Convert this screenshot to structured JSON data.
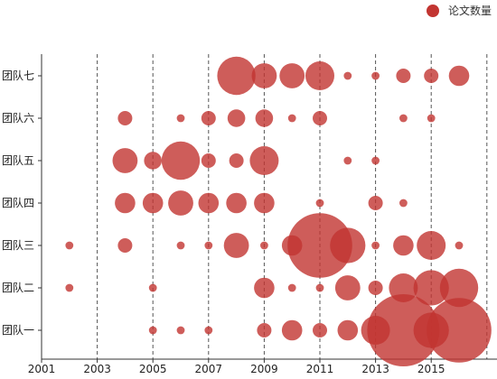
{
  "legend": {
    "label": "论文数量",
    "color": "#c23531"
  },
  "chart_data": {
    "type": "scatter",
    "subtype": "bubble",
    "series": [
      {
        "name": "论文数量",
        "color": "#c23531"
      }
    ],
    "x_categories": [
      "2001",
      "2002",
      "2003",
      "2004",
      "2005",
      "2006",
      "2007",
      "2008",
      "2009",
      "2010",
      "2011",
      "2012",
      "2013",
      "2014",
      "2015",
      "2016"
    ],
    "x_tick_labels": [
      "2001",
      "2003",
      "2005",
      "2007",
      "2009",
      "2011",
      "2013",
      "2015"
    ],
    "y_categories": [
      "团队一",
      "团队二",
      "团队三",
      "团队四",
      "团队五",
      "团队六",
      "团队七"
    ],
    "max_value": 25,
    "grid": {
      "vertical": true,
      "horizontal": false
    },
    "legend_position": "top-right",
    "points": [
      {
        "team": "团队七",
        "year": "2008",
        "value": 7
      },
      {
        "team": "团队七",
        "year": "2009",
        "value": 3
      },
      {
        "team": "团队七",
        "year": "2010",
        "value": 3
      },
      {
        "team": "团队七",
        "year": "2011",
        "value": 4
      },
      {
        "team": "团队七",
        "year": "2012",
        "value": 0.3
      },
      {
        "team": "团队七",
        "year": "2013",
        "value": 0.3
      },
      {
        "team": "团队七",
        "year": "2014",
        "value": 1
      },
      {
        "team": "团队七",
        "year": "2015",
        "value": 1
      },
      {
        "team": "团队七",
        "year": "2016",
        "value": 2
      },
      {
        "team": "团队六",
        "year": "2004",
        "value": 1
      },
      {
        "team": "团队六",
        "year": "2006",
        "value": 0.3
      },
      {
        "team": "团队六",
        "year": "2007",
        "value": 1
      },
      {
        "team": "团队六",
        "year": "2008",
        "value": 1.5
      },
      {
        "team": "团队六",
        "year": "2009",
        "value": 1.5
      },
      {
        "team": "团队六",
        "year": "2010",
        "value": 0.3
      },
      {
        "team": "团队六",
        "year": "2011",
        "value": 1
      },
      {
        "team": "团队六",
        "year": "2014",
        "value": 0.3
      },
      {
        "team": "团队六",
        "year": "2015",
        "value": 0.3
      },
      {
        "team": "团队五",
        "year": "2004",
        "value": 3
      },
      {
        "team": "团队五",
        "year": "2005",
        "value": 1.5
      },
      {
        "team": "团队五",
        "year": "2006",
        "value": 7
      },
      {
        "team": "团队五",
        "year": "2007",
        "value": 1
      },
      {
        "team": "团队五",
        "year": "2008",
        "value": 1
      },
      {
        "team": "团队五",
        "year": "2009",
        "value": 4
      },
      {
        "team": "团队五",
        "year": "2012",
        "value": 0.3
      },
      {
        "team": "团队五",
        "year": "2013",
        "value": 0.3
      },
      {
        "team": "团队四",
        "year": "2004",
        "value": 2
      },
      {
        "team": "团队四",
        "year": "2005",
        "value": 2
      },
      {
        "team": "团队四",
        "year": "2006",
        "value": 3
      },
      {
        "team": "团队四",
        "year": "2007",
        "value": 2
      },
      {
        "team": "团队四",
        "year": "2008",
        "value": 2
      },
      {
        "team": "团队四",
        "year": "2009",
        "value": 2
      },
      {
        "team": "团队四",
        "year": "2011",
        "value": 0.3
      },
      {
        "team": "团队四",
        "year": "2013",
        "value": 1
      },
      {
        "team": "团队四",
        "year": "2014",
        "value": 0.3
      },
      {
        "team": "团队三",
        "year": "2002",
        "value": 0.3
      },
      {
        "team": "团队三",
        "year": "2004",
        "value": 1
      },
      {
        "team": "团队三",
        "year": "2006",
        "value": 0.3
      },
      {
        "team": "团队三",
        "year": "2007",
        "value": 0.3
      },
      {
        "team": "团队三",
        "year": "2008",
        "value": 3
      },
      {
        "team": "团队三",
        "year": "2009",
        "value": 0.3
      },
      {
        "team": "团队三",
        "year": "2010",
        "value": 2
      },
      {
        "team": "团队三",
        "year": "2011",
        "value": 20
      },
      {
        "team": "团队三",
        "year": "2012",
        "value": 6
      },
      {
        "team": "团队三",
        "year": "2013",
        "value": 0.3
      },
      {
        "team": "团队三",
        "year": "2014",
        "value": 2
      },
      {
        "team": "团队三",
        "year": "2015",
        "value": 4
      },
      {
        "team": "团队三",
        "year": "2016",
        "value": 0.3
      },
      {
        "team": "团队二",
        "year": "2002",
        "value": 0.3
      },
      {
        "team": "团队二",
        "year": "2005",
        "value": 0.3
      },
      {
        "team": "团队二",
        "year": "2009",
        "value": 2
      },
      {
        "team": "团队二",
        "year": "2010",
        "value": 0.3
      },
      {
        "team": "团队二",
        "year": "2011",
        "value": 0.3
      },
      {
        "team": "团队二",
        "year": "2012",
        "value": 3
      },
      {
        "team": "团队二",
        "year": "2013",
        "value": 1
      },
      {
        "team": "团队二",
        "year": "2014",
        "value": 4
      },
      {
        "team": "团队二",
        "year": "2015",
        "value": 6
      },
      {
        "team": "团队二",
        "year": "2016",
        "value": 7
      },
      {
        "team": "团队一",
        "year": "2005",
        "value": 0.3
      },
      {
        "team": "团队一",
        "year": "2006",
        "value": 0.3
      },
      {
        "team": "团队一",
        "year": "2007",
        "value": 0.3
      },
      {
        "team": "团队一",
        "year": "2009",
        "value": 1
      },
      {
        "team": "团队一",
        "year": "2010",
        "value": 2
      },
      {
        "team": "团队一",
        "year": "2011",
        "value": 1
      },
      {
        "team": "团队一",
        "year": "2012",
        "value": 2
      },
      {
        "team": "团队一",
        "year": "2013",
        "value": 4
      },
      {
        "team": "团队一",
        "year": "2014",
        "value": 25
      },
      {
        "team": "团队一",
        "year": "2015",
        "value": 6
      },
      {
        "team": "团队一",
        "year": "2016",
        "value": 20
      }
    ]
  }
}
